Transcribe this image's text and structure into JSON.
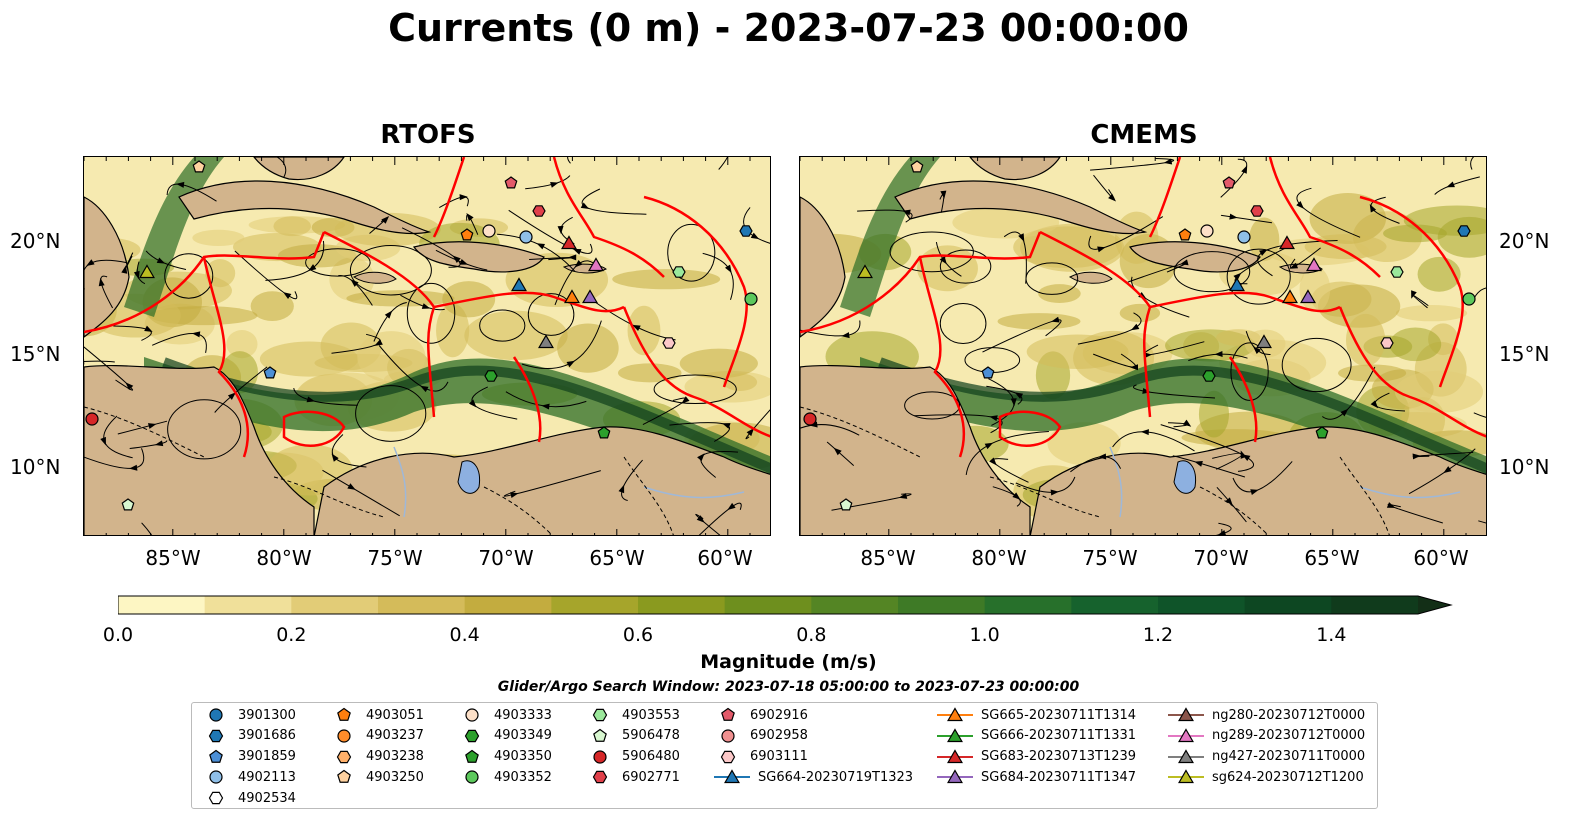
{
  "title": "Currents (0 m) - 2023-07-23 00:00:00",
  "panels": [
    {
      "title": "RTOFS"
    },
    {
      "title": "CMEMS"
    }
  ],
  "lat_labels": [
    "20°N",
    "15°N",
    "10°N"
  ],
  "lon_labels": [
    "85°W",
    "80°W",
    "75°W",
    "70°W",
    "65°W",
    "60°W"
  ],
  "colorbar": {
    "label": "Magnitude (m/s)",
    "ticks": [
      "0.0",
      "0.2",
      "0.4",
      "0.6",
      "0.8",
      "1.0",
      "1.2",
      "1.4"
    ],
    "min": 0.0,
    "max": 1.5,
    "extend": "max",
    "colors": [
      "#fdf6c3",
      "#f0e09a",
      "#e2cc77",
      "#d4bb5a",
      "#c3ac3f",
      "#a6a52b",
      "#8a9a1f",
      "#6e8f1e",
      "#548524",
      "#3e7a26",
      "#27702b",
      "#16622d",
      "#0f5429",
      "#0d4722",
      "#103b1c",
      "#132f17"
    ]
  },
  "search_window": "Glider/Argo Search Window: 2023-07-18 05:00:00 to 2023-07-23 00:00:00",
  "legend": {
    "items": [
      {
        "label": "3901300",
        "marker": "circle",
        "color": "#1f77b4",
        "col": 0,
        "row": 0
      },
      {
        "label": "3901686",
        "marker": "hexagon",
        "color": "#1f77b4",
        "col": 0,
        "row": 1
      },
      {
        "label": "3901859",
        "marker": "pentagon",
        "color": "#4c8fd6",
        "col": 0,
        "row": 2
      },
      {
        "label": "4902113",
        "marker": "circle",
        "color": "#8fbfe8",
        "col": 0,
        "row": 3
      },
      {
        "label": "4902534",
        "marker": "hexagon",
        "color": "#ffffff",
        "col": 0,
        "row": 4
      },
      {
        "label": "4903051",
        "marker": "pentagon",
        "color": "#ff7f0e",
        "col": 1,
        "row": 0
      },
      {
        "label": "4903237",
        "marker": "circle",
        "color": "#ff8c2a",
        "col": 1,
        "row": 1
      },
      {
        "label": "4903238",
        "marker": "hexagon",
        "color": "#ffb06a",
        "col": 1,
        "row": 2
      },
      {
        "label": "4903250",
        "marker": "pentagon",
        "color": "#ffd2a0",
        "col": 1,
        "row": 3
      },
      {
        "label": "4903333",
        "marker": "circle",
        "color": "#fde0c8",
        "col": 2,
        "row": 0
      },
      {
        "label": "4903349",
        "marker": "hexagon",
        "color": "#2ca02c",
        "col": 2,
        "row": 1
      },
      {
        "label": "4903350",
        "marker": "pentagon",
        "color": "#2ca02c",
        "col": 2,
        "row": 2
      },
      {
        "label": "4903352",
        "marker": "circle",
        "color": "#5cc85c",
        "col": 2,
        "row": 3
      },
      {
        "label": "4903553",
        "marker": "hexagon",
        "color": "#9be89b",
        "col": 3,
        "row": 0
      },
      {
        "label": "5906478",
        "marker": "pentagon",
        "color": "#d8f7d0",
        "col": 3,
        "row": 1
      },
      {
        "label": "5906480",
        "marker": "circle",
        "color": "#d62728",
        "col": 3,
        "row": 2
      },
      {
        "label": "6902771",
        "marker": "hexagon",
        "color": "#e0404a",
        "col": 3,
        "row": 3
      },
      {
        "label": "6902916",
        "marker": "pentagon",
        "color": "#e35a6a",
        "col": 4,
        "row": 0
      },
      {
        "label": "6902958",
        "marker": "circle",
        "color": "#f09090",
        "col": 4,
        "row": 1
      },
      {
        "label": "6903111",
        "marker": "hexagon",
        "color": "#fbc8c8",
        "col": 4,
        "row": 2
      },
      {
        "label": "SG664-20230719T1323",
        "marker": "triangle-line",
        "color": "#1f77b4",
        "col": 4,
        "row": 3
      },
      {
        "label": "SG665-20230711T1314",
        "marker": "triangle-line",
        "color": "#ff7f0e",
        "col": 5,
        "row": 0
      },
      {
        "label": "SG666-20230711T1331",
        "marker": "triangle-line",
        "color": "#2ca02c",
        "col": 5,
        "row": 1
      },
      {
        "label": "SG683-20230713T1239",
        "marker": "triangle-line",
        "color": "#d62728",
        "col": 5,
        "row": 2
      },
      {
        "label": "SG684-20230711T1347",
        "marker": "triangle-line",
        "color": "#9467bd",
        "col": 5,
        "row": 3
      },
      {
        "label": "ng280-20230712T0000",
        "marker": "triangle-line",
        "color": "#8c564b",
        "col": 6,
        "row": 0
      },
      {
        "label": "ng289-20230712T0000",
        "marker": "triangle-line",
        "color": "#e377c2",
        "col": 6,
        "row": 1
      },
      {
        "label": "ng427-20230711T0000",
        "marker": "triangle-line",
        "color": "#7f7f7f",
        "col": 6,
        "row": 2
      },
      {
        "label": "sg624-20230712T1200",
        "marker": "triangle-line",
        "color": "#bcbd22",
        "col": 6,
        "row": 3
      }
    ]
  },
  "colors": {
    "land": "#d2b48c",
    "eez_lines": "#ff0000",
    "streamlines": "#000000",
    "lakes": "#8db0e0"
  }
}
